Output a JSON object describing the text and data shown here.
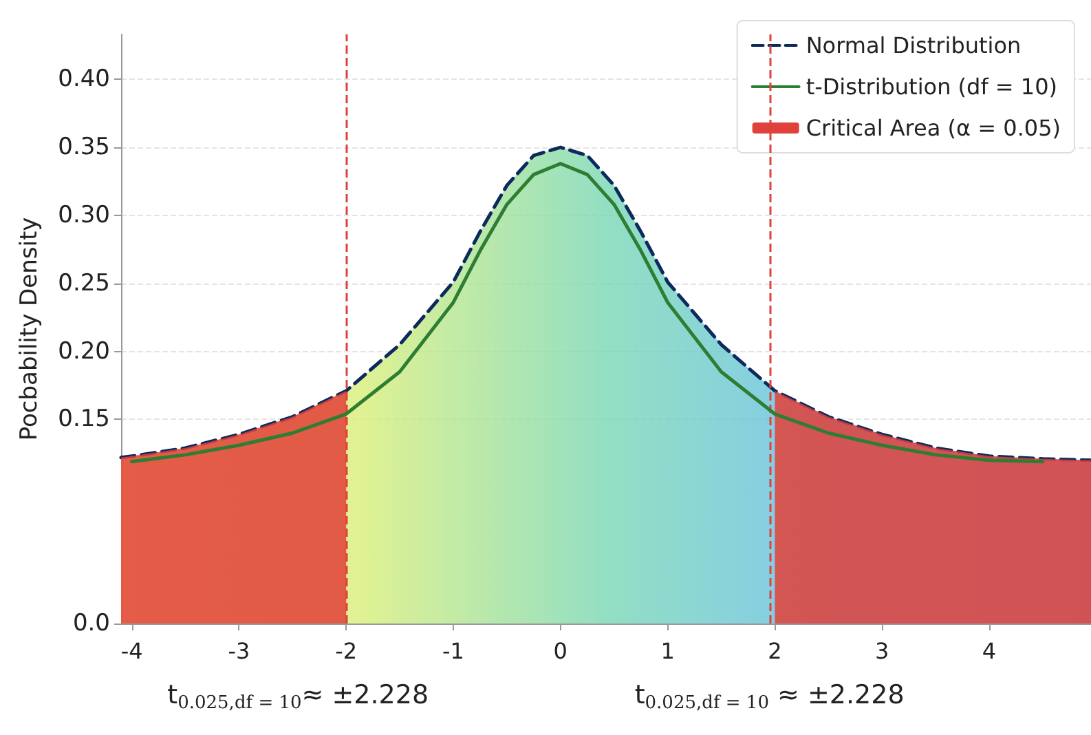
{
  "chart_data": {
    "type": "line",
    "ylabel": "Pocbability Density",
    "xlim": [
      -4.1,
      4.95
    ],
    "xticks": [
      -4,
      -3,
      -2,
      -1,
      0,
      1,
      2,
      3,
      4
    ],
    "ylim": [
      0,
      0.433
    ],
    "yticks": [
      {
        "value": 0,
        "label": "0.0"
      },
      0.15,
      {
        "value": 0.2,
        "label": "0.20"
      },
      0.25,
      {
        "value": 0.3,
        "label": "0.30"
      },
      0.35,
      {
        "value": 0.4,
        "label": "0.40"
      }
    ],
    "grid": "y",
    "legend": "top right",
    "series": [
      {
        "name": "Normal Distribution",
        "type": "area",
        "color": "#0d2a5c",
        "line_style": "dashed",
        "x": [
          -4.1,
          -4,
          -3.5,
          -3,
          -2.5,
          -2,
          -1.5,
          -1,
          -0.75,
          -0.5,
          -0.25,
          0,
          0.25,
          0.5,
          0.75,
          1,
          1.5,
          2,
          2.5,
          3,
          3.5,
          4,
          4.5,
          4.95
        ],
        "values": [
          0.122,
          0.123,
          0.129,
          0.139,
          0.152,
          0.171,
          0.205,
          0.251,
          0.288,
          0.322,
          0.344,
          0.35,
          0.344,
          0.322,
          0.288,
          0.251,
          0.205,
          0.171,
          0.152,
          0.139,
          0.129,
          0.123,
          0.121,
          0.12
        ]
      },
      {
        "name": "t-Distribution (df = 10)",
        "type": "line",
        "color": "#2e7d32",
        "line_style": "solid",
        "x": [
          -4,
          -3.5,
          -3,
          -2.5,
          -2,
          -1.5,
          -1,
          -0.75,
          -0.5,
          -0.25,
          0,
          0.25,
          0.5,
          0.75,
          1,
          1.5,
          2,
          2.5,
          3,
          3.5,
          4,
          4.5
        ],
        "values": [
          0.119,
          0.124,
          0.131,
          0.14,
          0.154,
          0.185,
          0.236,
          0.274,
          0.308,
          0.33,
          0.338,
          0.33,
          0.308,
          0.274,
          0.236,
          0.185,
          0.154,
          0.14,
          0.131,
          0.124,
          0.12,
          0.119
        ]
      },
      {
        "name": "Critical Area (α = 0.05)",
        "type": "area",
        "color": "#e0413a",
        "x": [
          -4.1,
          -4,
          -3.5,
          -3,
          -2.5,
          -2,
          0,
          2,
          2.5,
          3,
          3.5,
          4,
          4.5,
          4.95
        ],
        "values": [
          0.122,
          0.123,
          0.129,
          0.139,
          0.152,
          0.171,
          null,
          0.171,
          0.152,
          0.139,
          0.129,
          0.123,
          0.121,
          0.12
        ]
      }
    ],
    "ref_lines": [
      {
        "axis": "x",
        "value": -2,
        "color": "#e0413a",
        "line_style": "dashed"
      },
      {
        "axis": "x",
        "value": 1.95,
        "color": "#e0413a",
        "line_style": "dashed"
      }
    ],
    "annotations": [
      "t$_{0.025,df = 10}$≈ ±2.228",
      "t$_{0.025,df = 10}$ ≈ ±2.228"
    ]
  }
}
